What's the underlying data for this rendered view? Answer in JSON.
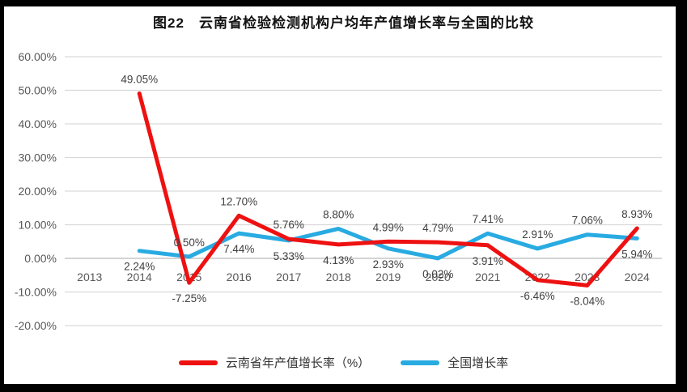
{
  "title": "图22　云南省检验检测机构户均年产值增长率与全国的比较",
  "chart_data": {
    "type": "line",
    "categories": [
      "2013",
      "2014",
      "2015",
      "2016",
      "2017",
      "2018",
      "2019",
      "2020",
      "2021",
      "2022",
      "2023",
      "2024"
    ],
    "series": [
      {
        "name": "云南省年产值增长率（%）",
        "color": "#ee1111",
        "values": [
          null,
          49.05,
          -7.25,
          12.7,
          5.76,
          4.13,
          4.99,
          4.79,
          3.91,
          -6.46,
          -8.04,
          8.93
        ]
      },
      {
        "name": "全国增长率",
        "color": "#29abe2",
        "values": [
          null,
          2.24,
          0.5,
          7.44,
          5.33,
          8.8,
          2.93,
          0.02,
          7.41,
          2.91,
          7.06,
          5.94
        ]
      }
    ],
    "ylim": [
      -20,
      60
    ],
    "y_step": 10,
    "y_tick_labels": [
      "60.00%",
      "50.00%",
      "40.00%",
      "30.00%",
      "20.00%",
      "10.00%",
      "0.00%",
      "-10.00%",
      "-20.00%"
    ],
    "data_label_format": "0.00%",
    "grid": true,
    "legend_position": "bottom",
    "colors": {
      "gridline": "#d9d9d9",
      "zero_line": "#c6c6c6",
      "axis_text": "#595959",
      "data_label_text": "#404040",
      "frame_border": "#000000"
    }
  },
  "legend": {
    "items": [
      {
        "label": "云南省年产值增长率（%）",
        "color": "#ee1111"
      },
      {
        "label": "全国增长率",
        "color": "#29abe2"
      }
    ]
  }
}
